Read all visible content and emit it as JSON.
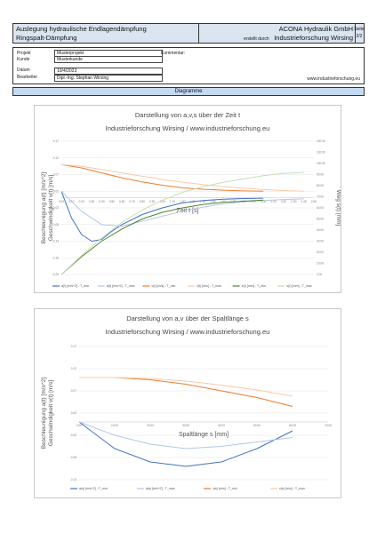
{
  "header": {
    "title_line1": "Auslegung hydraulische Endlagendämpfung",
    "title_line2": "Ringspalt-Dämpfung",
    "company": "ACONA Hydraulik GmbH",
    "created_by_label": "erstellt durch",
    "created_by": "Industrieforschung Wirsing",
    "page_label": "Seite",
    "page_value": "2/2"
  },
  "info": {
    "projekt_label": "Projekt",
    "projekt_value": "Musterprojekt",
    "kunde_label": "Kunde",
    "kunde_value": "Musterkunde",
    "kommentar_label": "Kommentar:",
    "datum_label": "Datum",
    "datum_value": "10/4/2023",
    "bearbeiter_label": "Bearbeiter",
    "bearbeiter_value": "Dipl.-Ing. Stephan Wirsing",
    "website": "www.industrieforschung.eu"
  },
  "section": {
    "title": "Diagramme"
  },
  "chart_data": [
    {
      "type": "line",
      "title": "Darstellung von a,v,s über der Zeit t",
      "subtitle": "Industrieforschung Wirsing / www.industrieforschung.eu",
      "xlabel": "Zeit t [s]",
      "ylabel_left_1": "Beschleunigung a(t) [m/s^2]",
      "ylabel_left_2": "Geschwindigkeit v(t) [m/s]",
      "ylabel_right": "Weg s(t) [mm]",
      "x_ticks": [
        "0.00",
        "0.10",
        "0.20",
        "0.30",
        "0.40",
        "0.50",
        "0.60",
        "0.70",
        "0.80",
        "0.90",
        "1.00",
        "1.10",
        "1.20",
        "1.30",
        "1.40",
        "1.50",
        "1.60",
        "1.70",
        "1.80",
        "1.90",
        "2.00",
        "2.10",
        "2.20",
        "2.30",
        "2.40",
        "2.50"
      ],
      "y_left_ticks": [
        "0.17",
        "0.12",
        "0.07",
        "0.02",
        "-0.03",
        "-0.08",
        "-0.13",
        "-0.18",
        "-0.23"
      ],
      "y_right_ticks": [
        "120.00",
        "110.00",
        "100.00",
        "90.00",
        "80.00",
        "70.00",
        "60.00",
        "50.00",
        "40.00",
        "30.00",
        "20.00",
        "10.00",
        "0.00"
      ],
      "ylim_left": [
        -0.23,
        0.17
      ],
      "ylim_right": [
        0,
        120
      ],
      "xlim": [
        0,
        2.5
      ],
      "series": [
        {
          "name": "a(t) [m/s^2] - T_min",
          "axis": "left",
          "color": "#4472c4",
          "x": [
            0,
            0.1,
            0.2,
            0.3,
            0.4,
            0.5,
            0.6,
            0.8,
            1.0,
            1.2,
            1.4,
            1.6,
            1.8,
            2.0
          ],
          "y": [
            0.02,
            -0.06,
            -0.11,
            -0.13,
            -0.125,
            -0.1,
            -0.08,
            -0.05,
            -0.03,
            -0.015,
            -0.008,
            -0.004,
            -0.002,
            -0.001
          ]
        },
        {
          "name": "a(t) [m/s^2] - T_max",
          "axis": "left",
          "color": "#b4c7e7",
          "x": [
            0,
            0.2,
            0.4,
            0.6,
            0.8,
            1.0,
            1.2,
            1.4,
            1.6,
            1.8,
            2.0,
            2.2,
            2.4
          ],
          "y": [
            0.02,
            -0.04,
            -0.08,
            -0.085,
            -0.07,
            -0.055,
            -0.04,
            -0.028,
            -0.018,
            -0.012,
            -0.008,
            -0.005,
            -0.003
          ]
        },
        {
          "name": "v(t) [m/s] - T_min",
          "axis": "left",
          "color": "#ed7d31",
          "x": [
            0,
            0.2,
            0.4,
            0.6,
            0.8,
            1.0,
            1.2,
            1.4,
            1.6,
            1.8,
            2.0
          ],
          "y": [
            0.1,
            0.09,
            0.075,
            0.06,
            0.048,
            0.038,
            0.03,
            0.026,
            0.023,
            0.021,
            0.02
          ]
        },
        {
          "name": "v(t) [m/s] - T_max",
          "axis": "left",
          "color": "#f8cbad",
          "x": [
            0,
            0.2,
            0.4,
            0.6,
            0.8,
            1.0,
            1.2,
            1.4,
            1.6,
            1.8,
            2.0,
            2.2,
            2.4
          ],
          "y": [
            0.1,
            0.095,
            0.085,
            0.075,
            0.065,
            0.055,
            0.047,
            0.04,
            0.034,
            0.029,
            0.025,
            0.022,
            0.02
          ]
        },
        {
          "name": "s(t) [mm] - T_min",
          "axis": "right",
          "color": "#548235",
          "x": [
            0,
            0.2,
            0.4,
            0.6,
            0.8,
            1.0,
            1.2,
            1.4,
            1.6,
            1.8,
            2.0
          ],
          "y": [
            0,
            16,
            30,
            41,
            50,
            56,
            60,
            63,
            65,
            66,
            67
          ]
        },
        {
          "name": "s(t) [mm] - T_max",
          "axis": "right",
          "color": "#c5e0b4",
          "x": [
            0,
            0.2,
            0.4,
            0.6,
            0.8,
            1.0,
            1.2,
            1.4,
            1.6,
            1.8,
            2.0,
            2.2,
            2.4
          ],
          "y": [
            0,
            17,
            33,
            47,
            58,
            67,
            74,
            79,
            83,
            86,
            89,
            91,
            92
          ]
        }
      ]
    },
    {
      "type": "line",
      "title": "Darstellung von a,v über der Spaltlänge s",
      "subtitle": "Industrieforschung Wirsing / www.industrieforschung.eu",
      "xlabel": "Spaltlänge s [mm]",
      "ylabel_left_1": "Beschleunigung a(t) [m/s^2]",
      "ylabel_left_2": "Geschwindigkeit v(t) [m/s]",
      "x_ticks": [
        "0.00",
        "10.00",
        "20.00",
        "30.00",
        "40.00",
        "50.00",
        "60.00",
        "70.00"
      ],
      "y_left_ticks": [
        "0.17",
        "0.12",
        "0.07",
        "0.02",
        "-0.03",
        "-0.08",
        "-0.13"
      ],
      "ylim_left": [
        -0.13,
        0.17
      ],
      "xlim": [
        0,
        70
      ],
      "series": [
        {
          "name": "a(s) [m/s^2] - T_min",
          "axis": "left",
          "color": "#4472c4",
          "x": [
            0,
            5,
            10,
            20,
            30,
            40,
            50,
            60
          ],
          "y": [
            0.0,
            -0.03,
            -0.06,
            -0.09,
            -0.1,
            -0.09,
            -0.06,
            -0.02
          ]
        },
        {
          "name": "a(s) [m/s^2] - T_max",
          "axis": "left",
          "color": "#b4c7e7",
          "x": [
            0,
            10,
            20,
            30,
            40,
            50,
            60
          ],
          "y": [
            0.0,
            -0.03,
            -0.05,
            -0.06,
            -0.055,
            -0.045,
            -0.035
          ]
        },
        {
          "name": "v(s) [m/s] - T_min",
          "axis": "left",
          "color": "#ed7d31",
          "x": [
            0,
            10,
            20,
            30,
            40,
            50,
            60
          ],
          "y": [
            0.1,
            0.1,
            0.095,
            0.085,
            0.07,
            0.055,
            0.035
          ]
        },
        {
          "name": "v(s) [m/s] - T_max",
          "axis": "left",
          "color": "#f8cbad",
          "x": [
            0,
            10,
            20,
            30,
            40,
            50,
            60
          ],
          "y": [
            0.1,
            0.1,
            0.098,
            0.092,
            0.083,
            0.072,
            0.058
          ]
        }
      ]
    }
  ]
}
